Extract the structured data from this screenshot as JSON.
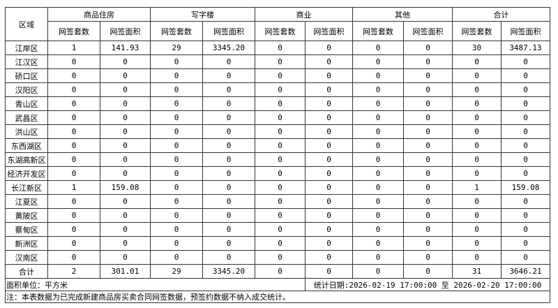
{
  "header": {
    "region_label": "区域",
    "groups": [
      "商品住房",
      "写字楼",
      "商业",
      "其他",
      "合计"
    ],
    "sub_count": "网签套数",
    "sub_area": "网签面积"
  },
  "rows": [
    {
      "region": "江岸区",
      "values": [
        "1",
        "141.93",
        "29",
        "3345.20",
        "0",
        "0",
        "0",
        "0",
        "30",
        "3487.13"
      ]
    },
    {
      "region": "江汉区",
      "values": [
        "0",
        "0",
        "0",
        "0",
        "0",
        "0",
        "0",
        "0",
        "0",
        "0"
      ]
    },
    {
      "region": "硚口区",
      "values": [
        "0",
        "0",
        "0",
        "0",
        "0",
        "0",
        "0",
        "0",
        "0",
        "0"
      ]
    },
    {
      "region": "汉阳区",
      "values": [
        "0",
        "0",
        "0",
        "0",
        "0",
        "0",
        "0",
        "0",
        "0",
        "0"
      ]
    },
    {
      "region": "青山区",
      "values": [
        "0",
        "0",
        "0",
        "0",
        "0",
        "0",
        "0",
        "0",
        "0",
        "0"
      ]
    },
    {
      "region": "武昌区",
      "values": [
        "0",
        "0",
        "0",
        "0",
        "0",
        "0",
        "0",
        "0",
        "0",
        "0"
      ]
    },
    {
      "region": "洪山区",
      "values": [
        "0",
        "0",
        "0",
        "0",
        "0",
        "0",
        "0",
        "0",
        "0",
        "0"
      ]
    },
    {
      "region": "东西湖区",
      "values": [
        "0",
        "0",
        "0",
        "0",
        "0",
        "0",
        "0",
        "0",
        "0",
        "0"
      ]
    },
    {
      "region": "东湖高新区",
      "values": [
        "0",
        "0",
        "0",
        "0",
        "0",
        "0",
        "0",
        "0",
        "0",
        "0"
      ]
    },
    {
      "region": "经济开发区",
      "values": [
        "0",
        "0",
        "0",
        "0",
        "0",
        "0",
        "0",
        "0",
        "0",
        "0"
      ]
    },
    {
      "region": "长江新区",
      "values": [
        "1",
        "159.08",
        "0",
        "0",
        "0",
        "0",
        "0",
        "0",
        "1",
        "159.08"
      ]
    },
    {
      "region": "江夏区",
      "values": [
        "0",
        "0",
        "0",
        "0",
        "0",
        "0",
        "0",
        "0",
        "0",
        "0"
      ]
    },
    {
      "region": "黄陂区",
      "values": [
        "0",
        "0",
        "0",
        "0",
        "0",
        "0",
        "0",
        "0",
        "0",
        "0"
      ]
    },
    {
      "region": "蔡甸区",
      "values": [
        "0",
        "0",
        "0",
        "0",
        "0",
        "0",
        "0",
        "0",
        "0",
        "0"
      ]
    },
    {
      "region": "新洲区",
      "values": [
        "0",
        "0",
        "0",
        "0",
        "0",
        "0",
        "0",
        "0",
        "0",
        "0"
      ]
    },
    {
      "region": "汉南区",
      "values": [
        "0",
        "0",
        "0",
        "0",
        "0",
        "0",
        "0",
        "0",
        "0",
        "0"
      ]
    },
    {
      "region": "合计",
      "values": [
        "2",
        "301.01",
        "29",
        "3345.20",
        "0",
        "0",
        "0",
        "0",
        "31",
        "3646.21"
      ]
    }
  ],
  "footer": {
    "unit": "面积单位：平方米",
    "date_range": "统计日期:2026-02-19 17:00:00 至 2026-02-20 17:00:00",
    "note": "注：本表数据为已完成新建商品房买卖合同网签数据，预签约数据不纳入成交统计。"
  }
}
